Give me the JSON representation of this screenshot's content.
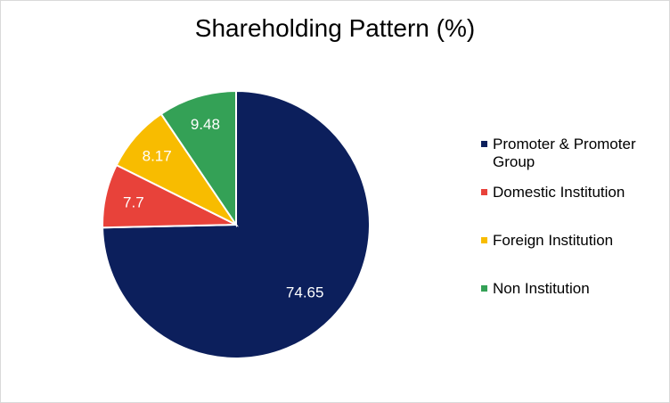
{
  "chart_data": {
    "type": "pie",
    "title": "Shareholding Pattern (%)",
    "categories": [
      "Promoter & Promoter Group",
      "Domestic Institution",
      "Foreign Institution",
      "Non Institution"
    ],
    "values": [
      74.65,
      7.7,
      8.17,
      9.48
    ],
    "data_labels": [
      "74.65",
      "7.7",
      "8.17",
      "9.48"
    ],
    "colors": [
      "#0c1f5c",
      "#e8423a",
      "#f8bc00",
      "#34a156"
    ],
    "legend_position": "right",
    "start_angle": "12 o'clock, clockwise"
  }
}
